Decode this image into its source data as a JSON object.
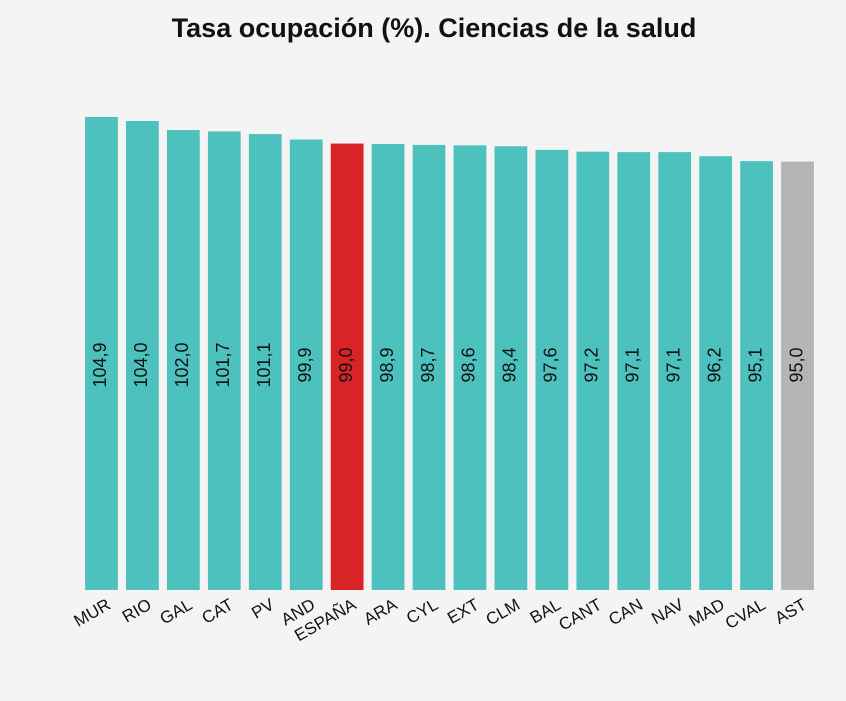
{
  "chart_data": {
    "type": "bar",
    "title": "Tasa ocupación (%). Ciencias de la salud",
    "categories": [
      "MUR",
      "RIO",
      "GAL",
      "CAT",
      "PV",
      "AND",
      "ESPAÑA",
      "ARA",
      "CYL",
      "EXT",
      "CLM",
      "BAL",
      "CANT",
      "CAN",
      "NAV",
      "MAD",
      "CVAL",
      "AST"
    ],
    "values": [
      104.9,
      104.0,
      102.0,
      101.7,
      101.1,
      99.9,
      99.0,
      98.9,
      98.7,
      98.6,
      98.4,
      97.6,
      97.2,
      97.1,
      97.1,
      96.2,
      95.1,
      95.0
    ],
    "value_labels": [
      "104,9",
      "104,0",
      "102,0",
      "101,7",
      "101,1",
      "99,9",
      "99,0",
      "98,9",
      "98,7",
      "98,6",
      "98,4",
      "97,6",
      "97,2",
      "97,1",
      "97,1",
      "96,2",
      "95,1",
      "95,0"
    ],
    "colors": [
      "#4dc1bd",
      "#4dc1bd",
      "#4dc1bd",
      "#4dc1bd",
      "#4dc1bd",
      "#4dc1bd",
      "#d92427",
      "#4dc1bd",
      "#4dc1bd",
      "#4dc1bd",
      "#4dc1bd",
      "#4dc1bd",
      "#4dc1bd",
      "#4dc1bd",
      "#4dc1bd",
      "#4dc1bd",
      "#4dc1bd",
      "#b5b5b5"
    ],
    "ylim": [
      0,
      105
    ]
  }
}
